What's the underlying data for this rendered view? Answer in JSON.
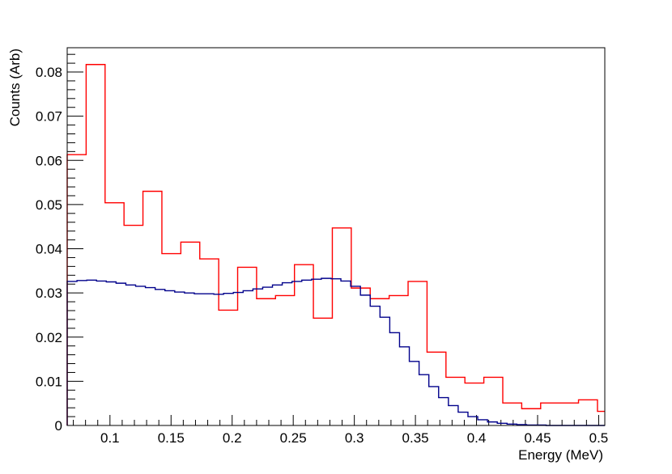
{
  "chart_data": {
    "type": "line",
    "title": "",
    "xlabel": "Energy (MeV)",
    "ylabel": "Counts (Arb)",
    "xlim": [
      0.065,
      0.505
    ],
    "ylim": [
      0,
      0.0855
    ],
    "x_ticks": [
      0.1,
      0.15,
      0.2,
      0.25,
      0.3,
      0.35,
      0.4,
      0.45,
      0.5
    ],
    "x_tick_labels": [
      "0.1",
      "0.15",
      "0.2",
      "0.25",
      "0.3",
      "0.35",
      "0.4",
      "0.45",
      "0.5"
    ],
    "y_ticks": [
      0,
      0.01,
      0.02,
      0.03,
      0.04,
      0.05,
      0.06,
      0.07,
      0.08
    ],
    "y_tick_labels": [
      "0",
      "0.01",
      "0.02",
      "0.03",
      "0.04",
      "0.05",
      "0.06",
      "0.07",
      "0.08"
    ],
    "grid": false,
    "legend": "none",
    "series": [
      {
        "style": "step-histogram",
        "color": "#ff0000",
        "bin_edges": [
          0.065,
          0.0805,
          0.096,
          0.1115,
          0.127,
          0.1425,
          0.158,
          0.1735,
          0.189,
          0.2045,
          0.22,
          0.2355,
          0.251,
          0.2665,
          0.282,
          0.2975,
          0.313,
          0.3285,
          0.344,
          0.3595,
          0.375,
          0.3905,
          0.406,
          0.4215,
          0.437,
          0.4525,
          0.468,
          0.4835,
          0.499,
          0.505
        ],
        "values": [
          0.0613,
          0.0817,
          0.0504,
          0.0453,
          0.053,
          0.0389,
          0.0415,
          0.0377,
          0.0261,
          0.0358,
          0.0287,
          0.0294,
          0.0364,
          0.0243,
          0.0447,
          0.0311,
          0.0287,
          0.0294,
          0.0326,
          0.0166,
          0.0109,
          0.0096,
          0.0109,
          0.0051,
          0.0038,
          0.0051,
          0.0051,
          0.0058,
          0.0032
        ]
      },
      {
        "style": "step-histogram",
        "color": "#00008b",
        "bin_edges": [
          0.065,
          0.073,
          0.081,
          0.089,
          0.097,
          0.105,
          0.113,
          0.121,
          0.129,
          0.137,
          0.145,
          0.153,
          0.161,
          0.169,
          0.177,
          0.185,
          0.193,
          0.201,
          0.209,
          0.217,
          0.225,
          0.233,
          0.241,
          0.249,
          0.257,
          0.265,
          0.273,
          0.281,
          0.289,
          0.297,
          0.305,
          0.313,
          0.321,
          0.329,
          0.337,
          0.345,
          0.353,
          0.361,
          0.369,
          0.377,
          0.385,
          0.393,
          0.401,
          0.409,
          0.417,
          0.425,
          0.433,
          0.441,
          0.449,
          0.457,
          0.465,
          0.473,
          0.481,
          0.489,
          0.497,
          0.505
        ],
        "values": [
          0.0326,
          0.0328,
          0.0329,
          0.0327,
          0.0325,
          0.0322,
          0.0318,
          0.0315,
          0.0312,
          0.0308,
          0.0305,
          0.0302,
          0.03,
          0.0298,
          0.0298,
          0.0297,
          0.0299,
          0.0301,
          0.0305,
          0.0309,
          0.0313,
          0.0318,
          0.0323,
          0.0326,
          0.0329,
          0.0331,
          0.0333,
          0.0332,
          0.0327,
          0.0315,
          0.0295,
          0.027,
          0.0245,
          0.021,
          0.0178,
          0.0145,
          0.0115,
          0.0088,
          0.0063,
          0.0045,
          0.003,
          0.002,
          0.0013,
          0.0008,
          0.0005,
          0.0003,
          0.0002,
          0.0001,
          0.0001,
          0.0,
          0.0,
          0.0,
          0.0,
          0.0,
          0.0
        ]
      }
    ]
  }
}
